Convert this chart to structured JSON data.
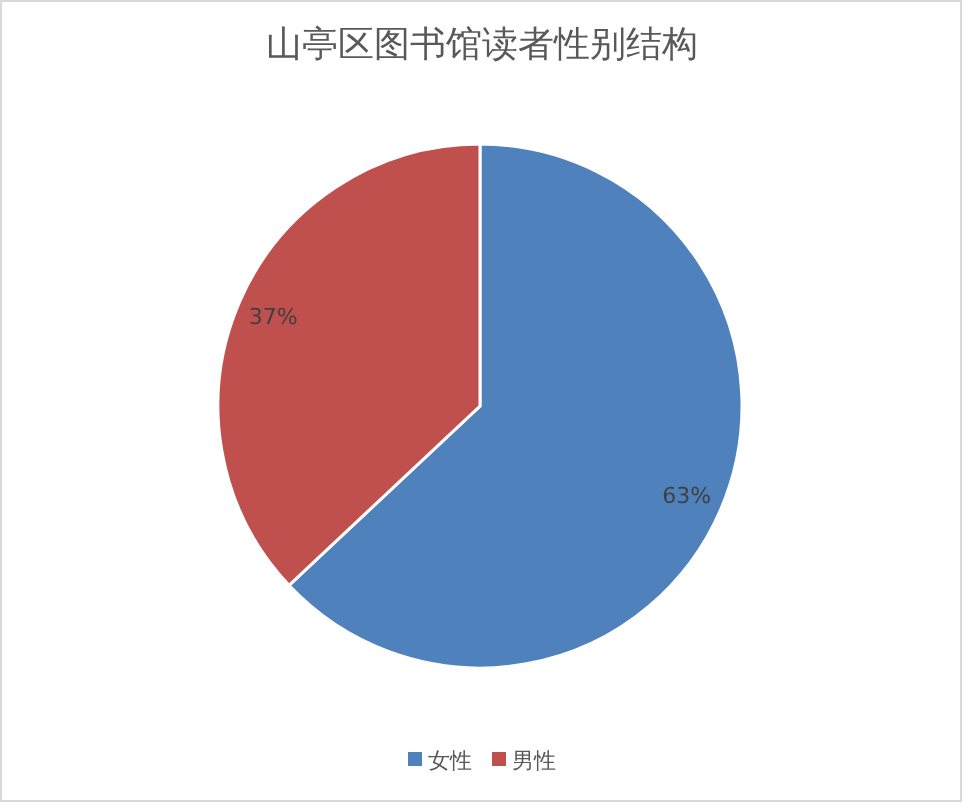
{
  "chart_data": {
    "type": "pie",
    "title": "山亭区图书馆读者性别结构",
    "categories": [
      "女性",
      "男性"
    ],
    "values": [
      63,
      37
    ],
    "colors": [
      "#4f81bd",
      "#c0504d"
    ],
    "value_labels": [
      "63%",
      "37%"
    ],
    "legend": "bottom"
  }
}
